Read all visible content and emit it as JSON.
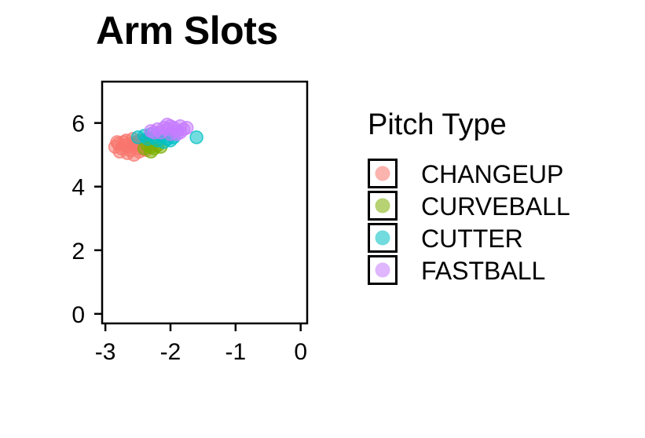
{
  "chart_data": {
    "type": "scatter",
    "title": "Arm Slots",
    "xlabel": "",
    "ylabel": "",
    "xlim": [
      -3.05,
      0.1
    ],
    "ylim": [
      -0.3,
      7.3
    ],
    "x_ticks": [
      -3,
      -2,
      -1,
      0
    ],
    "x_tick_labels": [
      "-3",
      "-2",
      "-1",
      "0"
    ],
    "y_ticks": [
      0,
      2,
      4,
      6
    ],
    "y_tick_labels": [
      "0",
      "2",
      "4",
      "6"
    ],
    "grid": false,
    "legend": {
      "title": "Pitch Type",
      "position": "right"
    },
    "series": [
      {
        "name": "CHANGEUP",
        "color": "#F8766D",
        "points": [
          [
            -2.85,
            5.25
          ],
          [
            -2.8,
            5.35
          ],
          [
            -2.75,
            5.2
          ],
          [
            -2.7,
            5.3
          ],
          [
            -2.72,
            5.4
          ],
          [
            -2.65,
            5.25
          ],
          [
            -2.6,
            5.35
          ],
          [
            -2.62,
            5.15
          ],
          [
            -2.55,
            5.3
          ],
          [
            -2.5,
            5.2
          ],
          [
            -2.52,
            5.4
          ],
          [
            -2.45,
            5.3
          ],
          [
            -2.4,
            5.45
          ],
          [
            -2.42,
            5.2
          ],
          [
            -2.35,
            5.35
          ],
          [
            -2.78,
            5.1
          ],
          [
            -2.68,
            5.45
          ],
          [
            -2.58,
            5.5
          ],
          [
            -2.48,
            5.1
          ],
          [
            -2.38,
            5.15
          ],
          [
            -2.82,
            5.4
          ],
          [
            -2.66,
            5.05
          ],
          [
            -2.56,
            5.0
          ],
          [
            -2.46,
            5.45
          ]
        ]
      },
      {
        "name": "CURVEBALL",
        "color": "#7CAE00",
        "points": [
          [
            -2.4,
            5.2
          ],
          [
            -2.35,
            5.3
          ],
          [
            -2.3,
            5.25
          ],
          [
            -2.25,
            5.2
          ],
          [
            -2.2,
            5.3
          ],
          [
            -2.3,
            5.1
          ],
          [
            -2.15,
            5.25
          ]
        ]
      },
      {
        "name": "CUTTER",
        "color": "#00BFC4",
        "points": [
          [
            -2.5,
            5.55
          ],
          [
            -2.4,
            5.6
          ],
          [
            -2.35,
            5.5
          ],
          [
            -2.3,
            5.65
          ],
          [
            -2.25,
            5.55
          ],
          [
            -2.2,
            5.45
          ],
          [
            -2.15,
            5.6
          ],
          [
            -2.1,
            5.4
          ],
          [
            -2.05,
            5.5
          ],
          [
            -2.0,
            5.45
          ],
          [
            -1.95,
            5.55
          ],
          [
            -1.6,
            5.55
          ]
        ]
      },
      {
        "name": "FASTBALL",
        "color": "#C77CFF",
        "points": [
          [
            -2.3,
            5.75
          ],
          [
            -2.2,
            5.8
          ],
          [
            -2.15,
            5.7
          ],
          [
            -2.1,
            5.85
          ],
          [
            -2.05,
            5.8
          ],
          [
            -2.0,
            5.9
          ],
          [
            -1.95,
            5.85
          ],
          [
            -1.9,
            5.75
          ],
          [
            -1.85,
            5.9
          ],
          [
            -1.8,
            5.8
          ],
          [
            -1.75,
            5.85
          ],
          [
            -2.05,
            5.95
          ],
          [
            -1.9,
            5.65
          ],
          [
            -2.25,
            5.7
          ],
          [
            -2.0,
            5.65
          ],
          [
            -1.85,
            5.7
          ]
        ]
      }
    ]
  }
}
